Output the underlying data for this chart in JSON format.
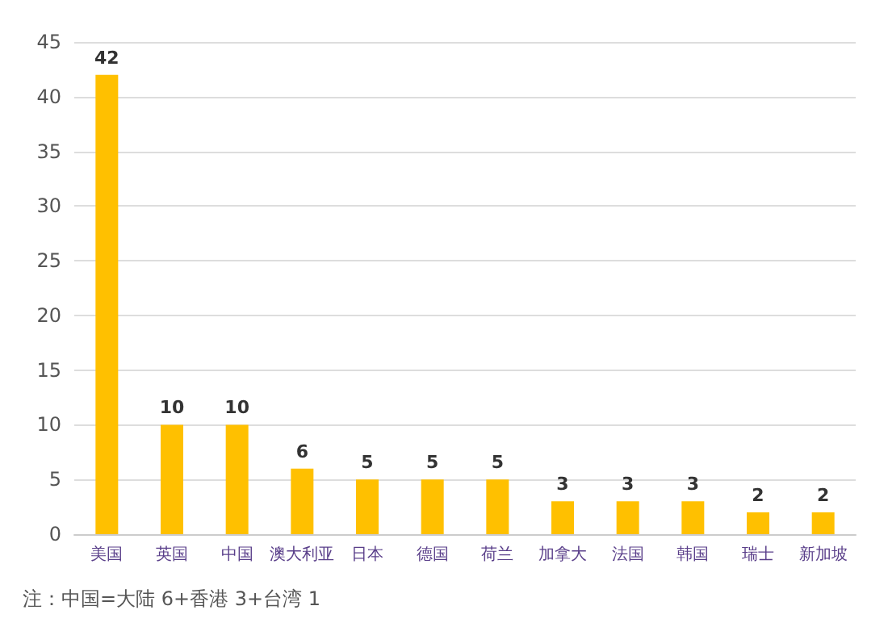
{
  "chart_data": {
    "type": "bar",
    "categories": [
      "美国",
      "英国",
      "中国",
      "澳大利亚",
      "日本",
      "德国",
      "荷兰",
      "加拿大",
      "法国",
      "韩国",
      "瑞士",
      "新加坡"
    ],
    "values": [
      42,
      10,
      10,
      6,
      5,
      5,
      5,
      3,
      3,
      3,
      2,
      2
    ],
    "color": "#ffc000",
    "ylim": [
      0,
      45
    ],
    "yticks": [
      0,
      5,
      10,
      15,
      20,
      25,
      30,
      35,
      40,
      45
    ],
    "grid": "y",
    "data_labels": true,
    "annotations": [
      "注：中国=大陆 6+香港 3+台湾 1"
    ]
  }
}
